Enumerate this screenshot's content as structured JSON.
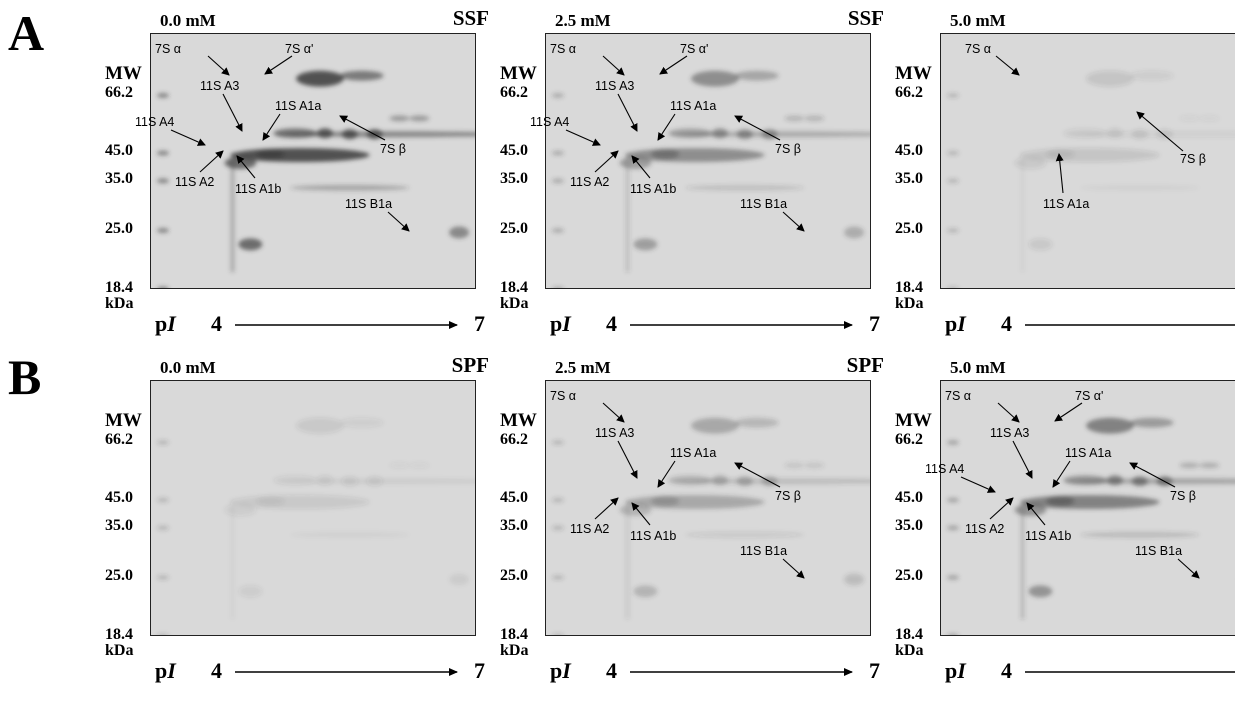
{
  "sections": [
    "A",
    "B"
  ],
  "panels": [
    {
      "section": "A",
      "concentration": "0.0 mM",
      "fraction": "SSF",
      "intensity": 1.0,
      "labels": [
        "7S α",
        "7S α'",
        "11S A3",
        "11S A1a",
        "11S A4",
        "7S β",
        "11S A2",
        "11S A1b",
        "11S B1a"
      ]
    },
    {
      "section": "A",
      "concentration": "2.5 mM",
      "fraction": "SSF",
      "intensity": 0.55,
      "labels": [
        "7S α",
        "7S α'",
        "11S A3",
        "11S A1a",
        "11S A4",
        "7S β",
        "11S A2",
        "11S A1b",
        "11S B1a"
      ]
    },
    {
      "section": "A",
      "concentration": "5.0 mM",
      "fraction": "SSF",
      "intensity": 0.14,
      "labels": [
        "7S α",
        "7S β",
        "11S A1a"
      ]
    },
    {
      "section": "B",
      "concentration": "0.0 mM",
      "fraction": "SPF",
      "intensity": 0.12,
      "labels": []
    },
    {
      "section": "B",
      "concentration": "2.5 mM",
      "fraction": "SPF",
      "intensity": 0.35,
      "labels": [
        "7S α",
        "11S A3",
        "11S A1a",
        "7S β",
        "11S A2",
        "11S A1b",
        "11S B1a"
      ]
    },
    {
      "section": "B",
      "concentration": "5.0 mM",
      "fraction": "SPF",
      "intensity": 0.65,
      "labels": [
        "7S α",
        "7S α'",
        "11S A3",
        "11S A1a",
        "11S A4",
        "7S β",
        "11S A2",
        "11S A1b",
        "11S B1a"
      ]
    }
  ],
  "mw_axis": {
    "header": "MW",
    "values": [
      "66.2",
      "45.0",
      "35.0",
      "25.0",
      "18.4"
    ],
    "unit": "kDa"
  },
  "pi_axis": {
    "label": "pI",
    "start": "4",
    "end": "7"
  },
  "colors": {
    "gel_background": "#d9d9d9",
    "band": "#3a3a3a",
    "ink": "#000000"
  }
}
